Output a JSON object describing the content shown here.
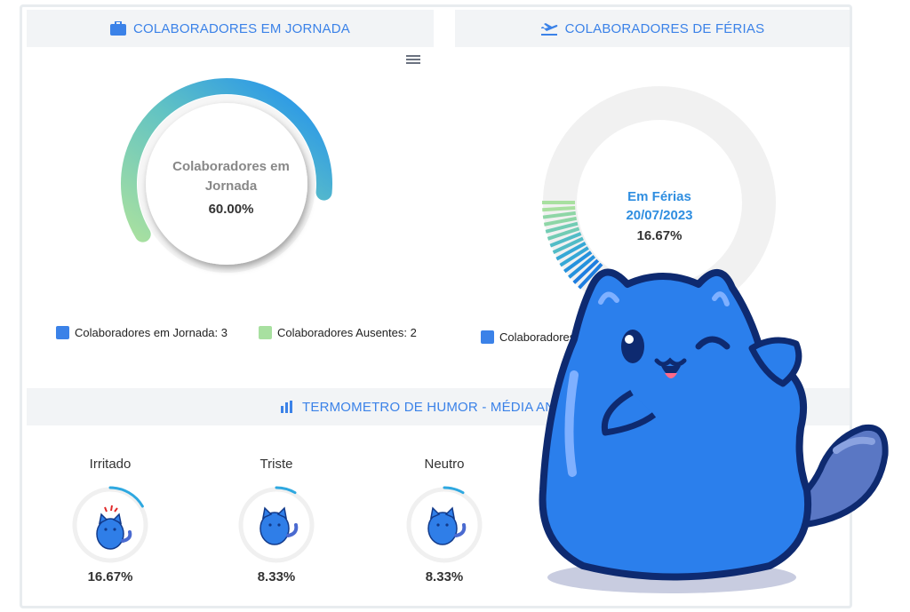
{
  "panels": {
    "jornada": {
      "title": "COLABORADORES EM JORNADA",
      "center_label_line1": "Colaboradores em",
      "center_label_line2": "Jornada",
      "center_value": "60.00%",
      "legend": [
        {
          "label": "Colaboradores em Jornada: 3",
          "color": "#3b82e8"
        },
        {
          "label": "Colaboradores Ausentes: 2",
          "color": "#a8e0a0"
        }
      ]
    },
    "ferias": {
      "title": "COLABORADORES DE FÉRIAS",
      "center_label_line1": "Em Férias",
      "center_label_line2": "20/07/2023",
      "center_value": "16.67%",
      "legend": [
        {
          "label": "Colaboradores",
          "color": "#3b82e8"
        }
      ]
    },
    "humor": {
      "title": "TERMOMETRO DE HUMOR - MÉDIA AN",
      "items": [
        {
          "label": "Irritado",
          "value": "16.67%"
        },
        {
          "label": "Triste",
          "value": "8.33%"
        },
        {
          "label": "Neutro",
          "value": "8.33%"
        }
      ]
    }
  },
  "chart_data": [
    {
      "type": "pie",
      "title": "Colaboradores em Jornada",
      "categories": [
        "Colaboradores em Jornada",
        "Colaboradores Ausentes"
      ],
      "values": [
        3,
        2
      ],
      "center_value": 60.0
    },
    {
      "type": "pie",
      "title": "Em Férias 20/07/2023",
      "categories": [
        "Em Férias"
      ],
      "values": [
        16.67
      ]
    },
    {
      "type": "bar",
      "categories": [
        "Irritado",
        "Triste",
        "Neutro"
      ],
      "values": [
        16.67,
        8.33,
        8.33
      ]
    }
  ],
  "colors": {
    "accent": "#3b82e8",
    "green": "#a8e0a0",
    "header_bg": "#f2f4f6"
  },
  "icons": {
    "jornada": "briefcase-icon",
    "ferias": "airplane-icon",
    "humor": "bar-chart-icon",
    "menu": "hamburger-menu-icon"
  }
}
